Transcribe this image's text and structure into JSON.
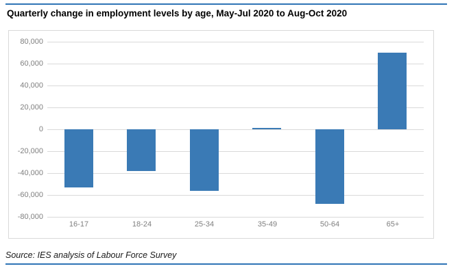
{
  "header": {
    "title": "Quarterly change in employment levels by age, May-Jul 2020 to Aug-Oct 2020"
  },
  "footer": {
    "source": "Source: IES analysis of Labour Force Survey"
  },
  "colors": {
    "rule": "#2E74B5",
    "bar": "#3A7AB5",
    "gridline": "#D9D9D9",
    "frame_border": "#D9D9D9",
    "axis_text": "#7F7F7F",
    "title_text": "#000000"
  },
  "chart_data": {
    "type": "bar",
    "title": "Quarterly change in employment levels by age, May-Jul 2020 to Aug-Oct 2020",
    "categories": [
      "16-17",
      "18-24",
      "25-34",
      "35-49",
      "50-64",
      "65+"
    ],
    "values": [
      -53000,
      -38000,
      -56000,
      1000,
      -68000,
      70000
    ],
    "ylim": [
      -80000,
      80000
    ],
    "ytick_step": 20000,
    "ytick_labels": [
      "80,000",
      "60,000",
      "40,000",
      "20,000",
      "0",
      "-20,000",
      "-40,000",
      "-60,000",
      "-80,000"
    ],
    "xlabel": "",
    "ylabel": "",
    "grid": true,
    "legend": false,
    "bar_color": "#3A7AB5",
    "source": "Source: IES analysis of Labour Force Survey"
  }
}
